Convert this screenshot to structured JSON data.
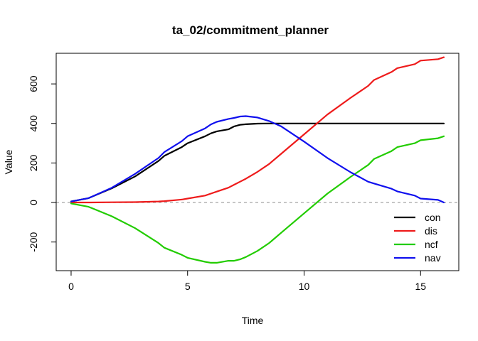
{
  "chart_data": {
    "type": "line",
    "title": "ta_02/commitment_planner",
    "xlabel": "Time",
    "ylabel": "Value",
    "xlim": [
      -0.64,
      16.64
    ],
    "ylim": [
      -345,
      755
    ],
    "x_ticks": [
      0,
      5,
      10,
      15
    ],
    "y_ticks": [
      -200,
      0,
      200,
      400,
      600
    ],
    "grid": false,
    "legend_position": "bottom-right",
    "reference_line": {
      "y": 0,
      "color": "#b3b3b3",
      "style": "dashed"
    },
    "x": [
      0,
      0.75,
      1.75,
      2.75,
      3.75,
      4.0,
      4.75,
      5.0,
      5.75,
      6.0,
      6.25,
      6.75,
      7.0,
      7.25,
      7.5,
      8.0,
      8.5,
      9.0,
      10.0,
      11.0,
      12.0,
      12.75,
      13.0,
      13.75,
      14.0,
      14.75,
      15.0,
      15.75,
      16.0
    ],
    "series": [
      {
        "name": "con",
        "color": "#000000",
        "values": [
          5,
          22,
          72,
          132,
          210,
          236,
          280,
          300,
          335,
          350,
          360,
          370,
          385,
          393,
          396,
          399,
          400,
          400,
          400,
          400,
          400,
          400,
          400,
          400,
          400,
          400,
          400,
          400,
          400
        ]
      },
      {
        "name": "dis",
        "color": "#ee1b1b",
        "values": [
          0,
          0,
          1,
          2,
          5,
          7,
          15,
          20,
          35,
          45,
          55,
          75,
          90,
          105,
          120,
          155,
          195,
          245,
          345,
          445,
          530,
          590,
          620,
          660,
          680,
          700,
          718,
          725,
          735
        ]
      },
      {
        "name": "ncf",
        "color": "#22cc00",
        "values": [
          -5,
          -22,
          -70,
          -130,
          -205,
          -229,
          -265,
          -280,
          -300,
          -305,
          -305,
          -295,
          -295,
          -288,
          -276,
          -245,
          -205,
          -155,
          -55,
          45,
          130,
          190,
          220,
          260,
          280,
          300,
          315,
          325,
          335
        ]
      },
      {
        "name": "nav",
        "color": "#1010ee",
        "values": [
          5,
          22,
          75,
          145,
          225,
          255,
          310,
          335,
          375,
          395,
          408,
          423,
          428,
          435,
          437,
          430,
          412,
          386,
          308,
          225,
          153,
          105,
          96,
          70,
          56,
          35,
          20,
          13,
          0
        ]
      }
    ]
  }
}
